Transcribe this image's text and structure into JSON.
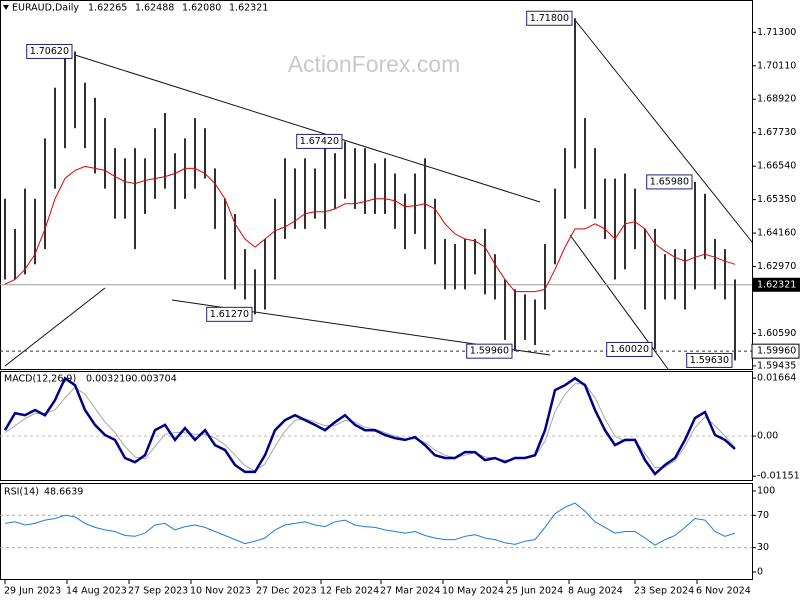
{
  "chart_data": [
    {
      "type": "ohlc",
      "title": "EURAUD,Daily",
      "ohlc": [
        1.62265,
        1.62488,
        {
          "value": 1.6208,
          "label": "1.62080"
        },
        1.62321
      ],
      "watermark": "ActionForex.com",
      "color": "#303030",
      "x": [
        0,
        5,
        10,
        15,
        20,
        25,
        30,
        35,
        40,
        45,
        50,
        55,
        60,
        65,
        70,
        75,
        80,
        85,
        90,
        95,
        100,
        105,
        110,
        115,
        120,
        125,
        130,
        135,
        140,
        145,
        150,
        155,
        160,
        165,
        170,
        175,
        180,
        185,
        190,
        195,
        200,
        205,
        210,
        215,
        220,
        225,
        230,
        235,
        240,
        245,
        250,
        255,
        260,
        265,
        270,
        275,
        280,
        285,
        290,
        295,
        300,
        305,
        310,
        315,
        320,
        325,
        330,
        335,
        340,
        345,
        350,
        355,
        360,
        365
      ],
      "high": [
        1.6538,
        1.6431,
        1.6574,
        1.6538,
        1.6753,
        1.6933,
        1.704,
        1.7062,
        1.6951,
        1.6897,
        1.6825,
        1.6718,
        1.6682,
        1.6718,
        1.6682,
        1.6789,
        1.6843,
        1.67,
        1.6753,
        1.6825,
        1.6789,
        1.6646,
        1.6538,
        1.6484,
        1.6359,
        1.6287,
        1.6395,
        1.6538,
        1.6682,
        1.6646,
        1.6682,
        1.6646,
        1.6718,
        1.67,
        1.6742,
        1.6718,
        1.6718,
        1.6664,
        1.6682,
        1.6628,
        1.6556,
        1.6628,
        1.6682,
        1.6538,
        1.6395,
        1.6377,
        1.6395,
        1.6395,
        1.6431,
        1.6341,
        1.6251,
        1.6216,
        1.6198,
        1.618,
        1.6377,
        1.6574,
        1.6718,
        1.718,
        1.6825,
        1.6718,
        1.661,
        1.661,
        1.6628,
        1.6574,
        1.6431,
        1.6431,
        1.6341,
        1.6359,
        1.6359,
        1.6598,
        1.6556,
        1.6395,
        1.6359,
        1.6251
      ],
      "low": [
        1.6251,
        1.6251,
        1.6269,
        1.6305,
        1.6359,
        1.6574,
        1.6718,
        1.6789,
        1.6718,
        1.6628,
        1.6574,
        1.6467,
        1.6467,
        1.6359,
        1.6484,
        1.6538,
        1.6574,
        1.6502,
        1.6538,
        1.6574,
        1.661,
        1.6431,
        1.6251,
        1.6216,
        1.618,
        1.6127,
        1.6144,
        1.6251,
        1.6395,
        1.6431,
        1.6431,
        1.6467,
        1.6431,
        1.6502,
        1.6538,
        1.6502,
        1.6484,
        1.6484,
        1.6484,
        1.6431,
        1.6359,
        1.6413,
        1.6359,
        1.6305,
        1.6216,
        1.6216,
        1.6216,
        1.6269,
        1.6198,
        1.618,
        1.6036,
        1.5996,
        1.6036,
        1.6018,
        1.6144,
        1.6305,
        1.6467,
        1.6646,
        1.6502,
        1.6467,
        1.6395,
        1.6251,
        1.6287,
        1.6359,
        1.6144,
        1.6002,
        1.618,
        1.618,
        1.6144,
        1.6216,
        1.6323,
        1.6216,
        1.618,
        1.5963
      ],
      "ma": {
        "color": "#e00000",
        "values": [
          1.6234,
          1.6251,
          1.6287,
          1.6341,
          1.6431,
          1.6538,
          1.661,
          1.6639,
          1.6653,
          1.6646,
          1.6639,
          1.6617,
          1.6599,
          1.6592,
          1.6603,
          1.661,
          1.6617,
          1.6628,
          1.6646,
          1.6646,
          1.6628,
          1.6592,
          1.6538,
          1.6449,
          1.6395,
          1.6366,
          1.6395,
          1.6424,
          1.6438,
          1.6459,
          1.6485,
          1.6492,
          1.6492,
          1.6502,
          1.652,
          1.652,
          1.6528,
          1.6538,
          1.6538,
          1.6531,
          1.651,
          1.6513,
          1.652,
          1.6502,
          1.6449,
          1.6413,
          1.6395,
          1.6388,
          1.6366,
          1.6305,
          1.6251,
          1.6208,
          1.6208,
          1.6208,
          1.6216,
          1.6287,
          1.6366,
          1.6431,
          1.6431,
          1.6449,
          1.6431,
          1.6395,
          1.6449,
          1.6456,
          1.6431,
          1.6377,
          1.6352,
          1.633,
          1.6316,
          1.633,
          1.6341,
          1.633,
          1.6316,
          1.6305
        ]
      },
      "last": 1.62321,
      "level": {
        "value": 1.5996,
        "label": "1.59960"
      },
      "annotations": [
        {
          "x": 35,
          "value": 1.7062,
          "label": "1.70620"
        },
        {
          "x": 285,
          "value": 1.718,
          "label": "1.71800"
        },
        {
          "x": 170,
          "value": 1.6742,
          "label": "1.67420"
        },
        {
          "x": 345,
          "value": 1.6598,
          "label": "1.65980"
        },
        {
          "x": 125,
          "value": 1.6127,
          "label": "1.61270"
        },
        {
          "x": 255,
          "value": 1.5996,
          "label": "1.59960"
        },
        {
          "x": 325,
          "value": 1.6002,
          "label": "1.60020"
        },
        {
          "x": 365,
          "value": 1.5963,
          "label": "1.59630"
        }
      ],
      "xlim": [
        -2.5,
        373.5
      ],
      "xticks": [
        {
          "value": 0,
          "label": "29 Jun 2023"
        },
        {
          "value": 31,
          "label": "14 Aug 2023"
        },
        {
          "value": 62,
          "label": "27 Sep 2023"
        },
        {
          "value": 93,
          "label": "10 Nov 2023"
        },
        {
          "value": 126,
          "label": "27 Dec 2023"
        },
        {
          "value": 158,
          "label": "12 Feb 2024"
        },
        {
          "value": 188,
          "label": "27 Mar 2024"
        },
        {
          "value": 219,
          "label": "10 May 2024"
        },
        {
          "value": 251,
          "label": "25 Jun 2024"
        },
        {
          "value": 282,
          "label": "8 Aug 2024"
        },
        {
          "value": 315,
          "label": "23 Sep 2024"
        },
        {
          "value": 346,
          "label": "6 Nov 2024"
        }
      ],
      "ylim": [
        1.5929,
        1.7245
      ],
      "yticks": [
        {
          "value": 1.713,
          "label": "1.71300"
        },
        {
          "value": 1.7011,
          "label": "1.70110"
        },
        {
          "value": 1.6892,
          "label": "1.68920"
        },
        {
          "value": 1.6773,
          "label": "1.67730"
        },
        {
          "value": 1.6654,
          "label": "1.66540"
        },
        {
          "value": 1.6535,
          "label": "1.65350"
        },
        {
          "value": 1.6416,
          "label": "1.64160"
        },
        {
          "value": 1.6297,
          "label": "1.62970"
        },
        {
          "value": 1.6059,
          "label": "1.60590"
        },
        1.59435
      ]
    },
    {
      "type": "macd",
      "title": "MACD(12,26,9)",
      "readings": [
        {
          "value": 0.00321,
          "label": "0.003210"
        },
        {
          "value": -0.003704,
          "label": "-0.003704"
        }
      ],
      "series": [
        {
          "color": "#00008b",
          "values": [
            0.0017,
            0.0066,
            0.006,
            0.0075,
            0.006,
            0.0103,
            0.0166,
            0.0146,
            0.0075,
            0.0032,
            0.0003,
            -0.0011,
            -0.0063,
            -0.0075,
            -0.0055,
            0.0017,
            0.0032,
            -0.0011,
            0.0023,
            -0.0011,
            0.0017,
            -0.0026,
            -0.004,
            -0.0083,
            -0.0103,
            -0.0103,
            -0.0055,
            0.0017,
            0.0046,
            0.006,
            0.0046,
            0.0032,
            0.0017,
            0.004,
            0.006,
            0.0032,
            0.0017,
            0.0017,
            0.0003,
            -0.0006,
            -0.0011,
            -0.0003,
            -0.0026,
            -0.0055,
            -0.0063,
            -0.0063,
            -0.0046,
            -0.0046,
            -0.0069,
            -0.0063,
            -0.0075,
            -0.0063,
            -0.0063,
            -0.0055,
            0.0017,
            0.0132,
            0.0146,
            0.0166,
            0.0146,
            0.0075,
            0.0017,
            -0.0026,
            -0.0011,
            -0.0011,
            -0.0069,
            -0.0109,
            -0.0083,
            -0.0063,
            -0.0011,
            0.0052,
            0.0069,
            0.0003,
            -0.0011,
            -0.0037
          ]
        },
        {
          "color": "#a8a8a8",
          "values": [
            0.001,
            0.003,
            0.005,
            0.0065,
            0.0065,
            0.0075,
            0.011,
            0.014,
            0.012,
            0.008,
            0.004,
            0.001,
            -0.003,
            -0.006,
            -0.0065,
            -0.003,
            0.0005,
            0.001,
            0.001,
            0.0005,
            0.0005,
            -0.0005,
            -0.0025,
            -0.0055,
            -0.0085,
            -0.01,
            -0.008,
            -0.003,
            0.0015,
            0.0045,
            0.005,
            0.004,
            0.003,
            0.003,
            0.0045,
            0.004,
            0.0025,
            0.002,
            0.001,
            0,
            -0.0008,
            -0.0008,
            -0.0018,
            -0.004,
            -0.0055,
            -0.0062,
            -0.0055,
            -0.0048,
            -0.006,
            -0.0063,
            -0.007,
            -0.0065,
            -0.0062,
            -0.0058,
            -0.0015,
            0.007,
            0.012,
            0.015,
            0.015,
            0.011,
            0.005,
            0,
            -0.0015,
            -0.0012,
            -0.005,
            -0.009,
            -0.009,
            -0.007,
            -0.003,
            0.0025,
            0.0055,
            0.003,
            0,
            -0.0032
          ]
        }
      ],
      "ylim": [
        -0.0129,
        0.0184
      ],
      "yticks": [
        0.01664,
        {
          "value": 0,
          "label": "0.00"
        },
        -0.011515
      ]
    },
    {
      "type": "rsi",
      "title": "RSI(14)",
      "reading": 48.6639,
      "color": "#1e7fd8",
      "values": [
        60,
        62,
        58,
        60,
        64,
        66,
        70,
        68,
        60,
        55,
        52,
        50,
        45,
        44,
        48,
        58,
        60,
        52,
        56,
        58,
        55,
        50,
        45,
        40,
        35,
        38,
        42,
        52,
        58,
        60,
        62,
        58,
        56,
        62,
        64,
        58,
        56,
        55,
        52,
        50,
        48,
        50,
        45,
        42,
        40,
        40,
        44,
        46,
        42,
        40,
        36,
        34,
        38,
        40,
        55,
        72,
        80,
        85,
        75,
        62,
        55,
        48,
        50,
        50,
        42,
        33,
        40,
        45,
        55,
        66,
        64,
        50,
        44,
        48
      ],
      "levels": [
        70,
        30
      ],
      "ylim": [
        -9.9,
        108.6
      ],
      "yticks": [
        100,
        70,
        30,
        0
      ]
    }
  ]
}
